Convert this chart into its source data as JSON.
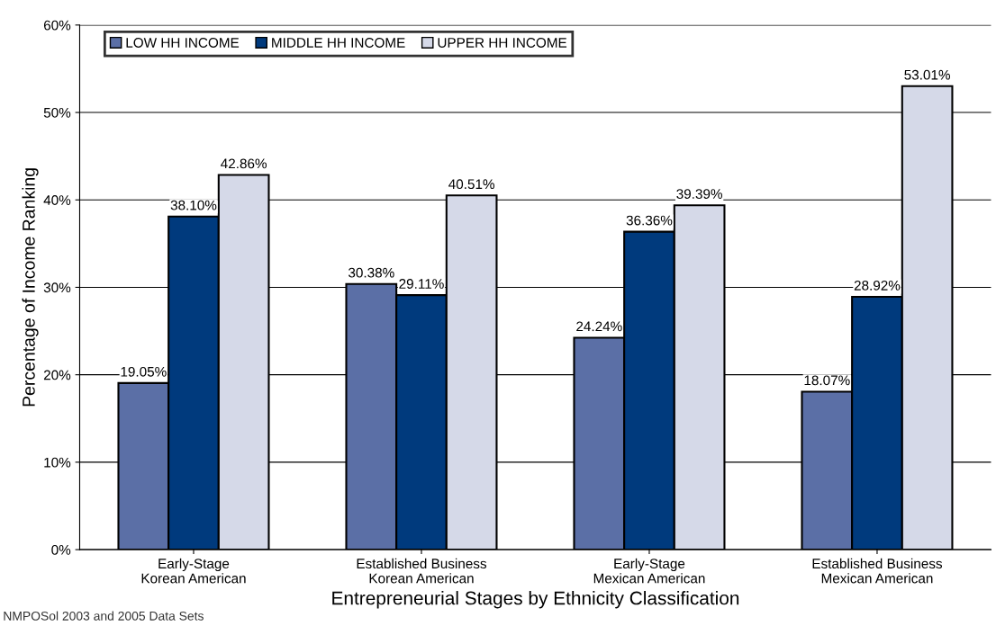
{
  "chart_data": {
    "type": "bar",
    "xlabel": "Entrepreneurial Stages by Ethnicity Classification",
    "ylabel": "Percentage of Income Ranking",
    "categories": [
      "Early-Stage\nKorean American",
      "Established Business\nKorean American",
      "Early-Stage\nMexican American",
      "Established Business\nMexican American"
    ],
    "series": [
      {
        "name": "LOW HH INCOME",
        "color": "#5b6fa6",
        "values": [
          19.05,
          30.38,
          24.24,
          18.07
        ],
        "value_labels": [
          "19.05%",
          "30.38%",
          "24.24%",
          "18.07%"
        ]
      },
      {
        "name": "MIDDLE HH INCOME",
        "color": "#003a7d",
        "values": [
          38.1,
          29.11,
          36.36,
          28.92
        ],
        "value_labels": [
          "38.10%",
          "29.11%",
          "36.36%",
          "28.92%"
        ]
      },
      {
        "name": "UPPER HH INCOME",
        "color": "#d5d9e8",
        "values": [
          42.86,
          40.51,
          39.39,
          53.01
        ],
        "value_labels": [
          "42.86%",
          "40.51%",
          "39.39%",
          "53.01%"
        ]
      }
    ],
    "ylim": [
      0,
      60
    ],
    "yticks": [
      {
        "value": 0,
        "label": "0%"
      },
      {
        "value": 10,
        "label": "10%"
      },
      {
        "value": 20,
        "label": "20%"
      },
      {
        "value": 30,
        "label": "30%"
      },
      {
        "value": 40,
        "label": "40%"
      },
      {
        "value": 50,
        "label": "50%"
      },
      {
        "value": 60,
        "label": "60%"
      }
    ],
    "grid": "y",
    "legend": "top left",
    "annotations": [
      "NMPOSol 2003 and 2005 Data Sets"
    ]
  }
}
